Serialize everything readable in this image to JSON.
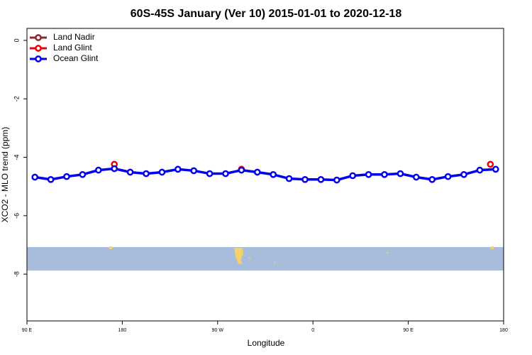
{
  "chart_data": {
    "type": "line",
    "title": "60S-45S January (Ver 10)   2015-01-01 to 2020-12-18",
    "x_label": "Longitude",
    "y_label": "XCO2 - MLO trend (ppm)",
    "xlim": [
      90,
      540
    ],
    "xticks": [
      {
        "value": 90,
        "label": "90 E"
      },
      180,
      {
        "value": 270,
        "label": "90 W"
      },
      {
        "value": 360,
        "label": "0"
      },
      {
        "value": 450,
        "label": "90 E"
      },
      {
        "value": 540,
        "label": "180"
      }
    ],
    "ylim": [
      -9.6,
      0.41
    ],
    "yticks": [
      0,
      -2,
      -4,
      -6,
      -8
    ],
    "legend": "top-left",
    "series": [
      {
        "name": "Land Nadir",
        "color": "#8b2a2a",
        "x": [],
        "values": []
      },
      {
        "name": "Land Glint",
        "color": "#ee0000",
        "x": [
          172.5,
          292.5,
          527.5
        ],
        "values": [
          -4.24,
          -4.41,
          -4.24
        ]
      },
      {
        "name": "Ocean Glint",
        "color": "#0000ee",
        "x": [
          97.5,
          112.5,
          127.5,
          142.5,
          157.5,
          172.5,
          187.5,
          202.5,
          217.5,
          232.5,
          247.5,
          262.5,
          277.5,
          292.5,
          307.5,
          322.5,
          337.5,
          352.5,
          367.5,
          382.5,
          397.5,
          412.5,
          427.5,
          442.5,
          457.5,
          472.5,
          487.5,
          502.5,
          517.5,
          532.5
        ],
        "values": [
          -4.68,
          -4.76,
          -4.66,
          -4.59,
          -4.44,
          -4.39,
          -4.51,
          -4.56,
          -4.51,
          -4.41,
          -4.46,
          -4.56,
          -4.56,
          -4.44,
          -4.51,
          -4.59,
          -4.73,
          -4.76,
          -4.76,
          -4.78,
          -4.63,
          -4.59,
          -4.59,
          -4.56,
          -4.68,
          -4.76,
          -4.66,
          -4.59,
          -4.44,
          -4.41
        ]
      }
    ]
  }
}
